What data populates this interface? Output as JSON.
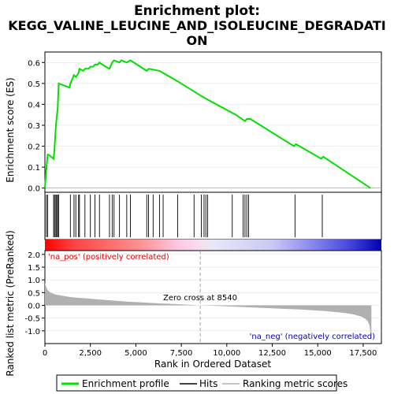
{
  "chart_data": [
    {
      "type": "line",
      "title_lines": [
        "Enrichment plot:",
        "KEGG_VALINE_LEUCINE_AND_ISOLEUCINE_DEGRADATI",
        "ON"
      ],
      "ylabel": "Enrichment score (ES)",
      "xlim": [
        0,
        18500
      ],
      "ylim": [
        -0.02,
        0.65
      ],
      "y_ticks": [
        0.0,
        0.1,
        0.2,
        0.3,
        0.4,
        0.5,
        0.6
      ],
      "y_tick_labels": [
        "0.0",
        "0.1",
        "0.2",
        "0.3",
        "0.4",
        "0.5",
        "0.6"
      ],
      "series": [
        {
          "name": "Enrichment profile",
          "color": "#00e000",
          "x": [
            0,
            80,
            150,
            200,
            480,
            530,
            600,
            650,
            700,
            760,
            1350,
            1400,
            1600,
            1700,
            1850,
            1900,
            2100,
            2200,
            2400,
            2500,
            2650,
            2750,
            2900,
            3000,
            3150,
            3550,
            3700,
            3800,
            4100,
            4200,
            4500,
            4700,
            5600,
            5700,
            6300,
            6500,
            7300,
            8600,
            9000,
            10500,
            11000,
            11100,
            11300,
            13700,
            13800,
            15200,
            15300,
            17900
          ],
          "y": [
            0.0,
            0.09,
            0.16,
            0.16,
            0.14,
            0.19,
            0.29,
            0.34,
            0.38,
            0.5,
            0.48,
            0.5,
            0.54,
            0.53,
            0.55,
            0.57,
            0.56,
            0.57,
            0.57,
            0.58,
            0.58,
            0.59,
            0.59,
            0.6,
            0.59,
            0.57,
            0.6,
            0.61,
            0.6,
            0.61,
            0.6,
            0.61,
            0.56,
            0.57,
            0.56,
            0.55,
            0.51,
            0.44,
            0.42,
            0.35,
            0.32,
            0.33,
            0.33,
            0.2,
            0.21,
            0.14,
            0.15,
            0.0
          ]
        }
      ],
      "hits": [
        80,
        150,
        480,
        530,
        600,
        650,
        700,
        760,
        1400,
        1600,
        1700,
        1850,
        1900,
        2200,
        2500,
        2750,
        3000,
        3550,
        3700,
        3800,
        4100,
        4500,
        4700,
        5600,
        5700,
        5950,
        6300,
        6500,
        7300,
        8200,
        8600,
        8750,
        8850,
        8950,
        10300,
        10900,
        11000,
        11100,
        11200,
        13750,
        15250
      ]
    },
    {
      "type": "area",
      "ylabel": "Ranked list metric (PreRanked)",
      "xlabel": "Rank in Ordered Dataset",
      "xlim": [
        0,
        18500
      ],
      "ylim": [
        -1.5,
        2.15
      ],
      "y_ticks": [
        -1.0,
        -0.5,
        0.0,
        0.5,
        1.0,
        1.5,
        2.0
      ],
      "y_tick_labels": [
        "-1.0",
        "-0.5",
        "0.0",
        "0.5",
        "1.0",
        "1.5",
        "2.0"
      ],
      "x_ticks": [
        0,
        2500,
        5000,
        7500,
        10000,
        12500,
        15000,
        17500
      ],
      "x_tick_labels": [
        "0",
        "2,500",
        "5,000",
        "7,500",
        "10,000",
        "12,500",
        "15,000",
        "17,500"
      ],
      "series": [
        {
          "name": "Ranking metric scores",
          "color": "#b0b0b0",
          "x": [
            0,
            50,
            150,
            300,
            600,
            1000,
            1500,
            2500,
            3500,
            4500,
            6000,
            7500,
            8540,
            10000,
            12000,
            14000,
            15500,
            16500,
            17000,
            17400,
            17600,
            17750,
            17850,
            17950
          ],
          "y": [
            0.9,
            0.75,
            0.6,
            0.5,
            0.42,
            0.37,
            0.32,
            0.26,
            0.2,
            0.15,
            0.09,
            0.04,
            0.0,
            -0.04,
            -0.1,
            -0.16,
            -0.23,
            -0.3,
            -0.36,
            -0.44,
            -0.52,
            -0.62,
            -0.8,
            -1.35
          ]
        }
      ],
      "annotations": {
        "zero_cross": "Zero cross at 8540",
        "pos_label": "'na_pos' (positively correlated)",
        "neg_label": "'na_neg' (negatively correlated)"
      },
      "zero_cross_rank": 8540
    }
  ],
  "legend": [
    {
      "label": "Enrichment profile",
      "color": "#00e000",
      "kind": "thick-line"
    },
    {
      "label": "Hits",
      "color": "#000000",
      "kind": "thin-line"
    },
    {
      "label": "Ranking metric scores",
      "color": "#b0b0b0",
      "kind": "thin-line"
    }
  ],
  "colors": {
    "heat_red": "#ff0000",
    "heat_blue": "#0000ff",
    "heat_mid": "#ffffff",
    "pos_label_color": "#e00000",
    "neg_label_color": "#0000c0"
  }
}
